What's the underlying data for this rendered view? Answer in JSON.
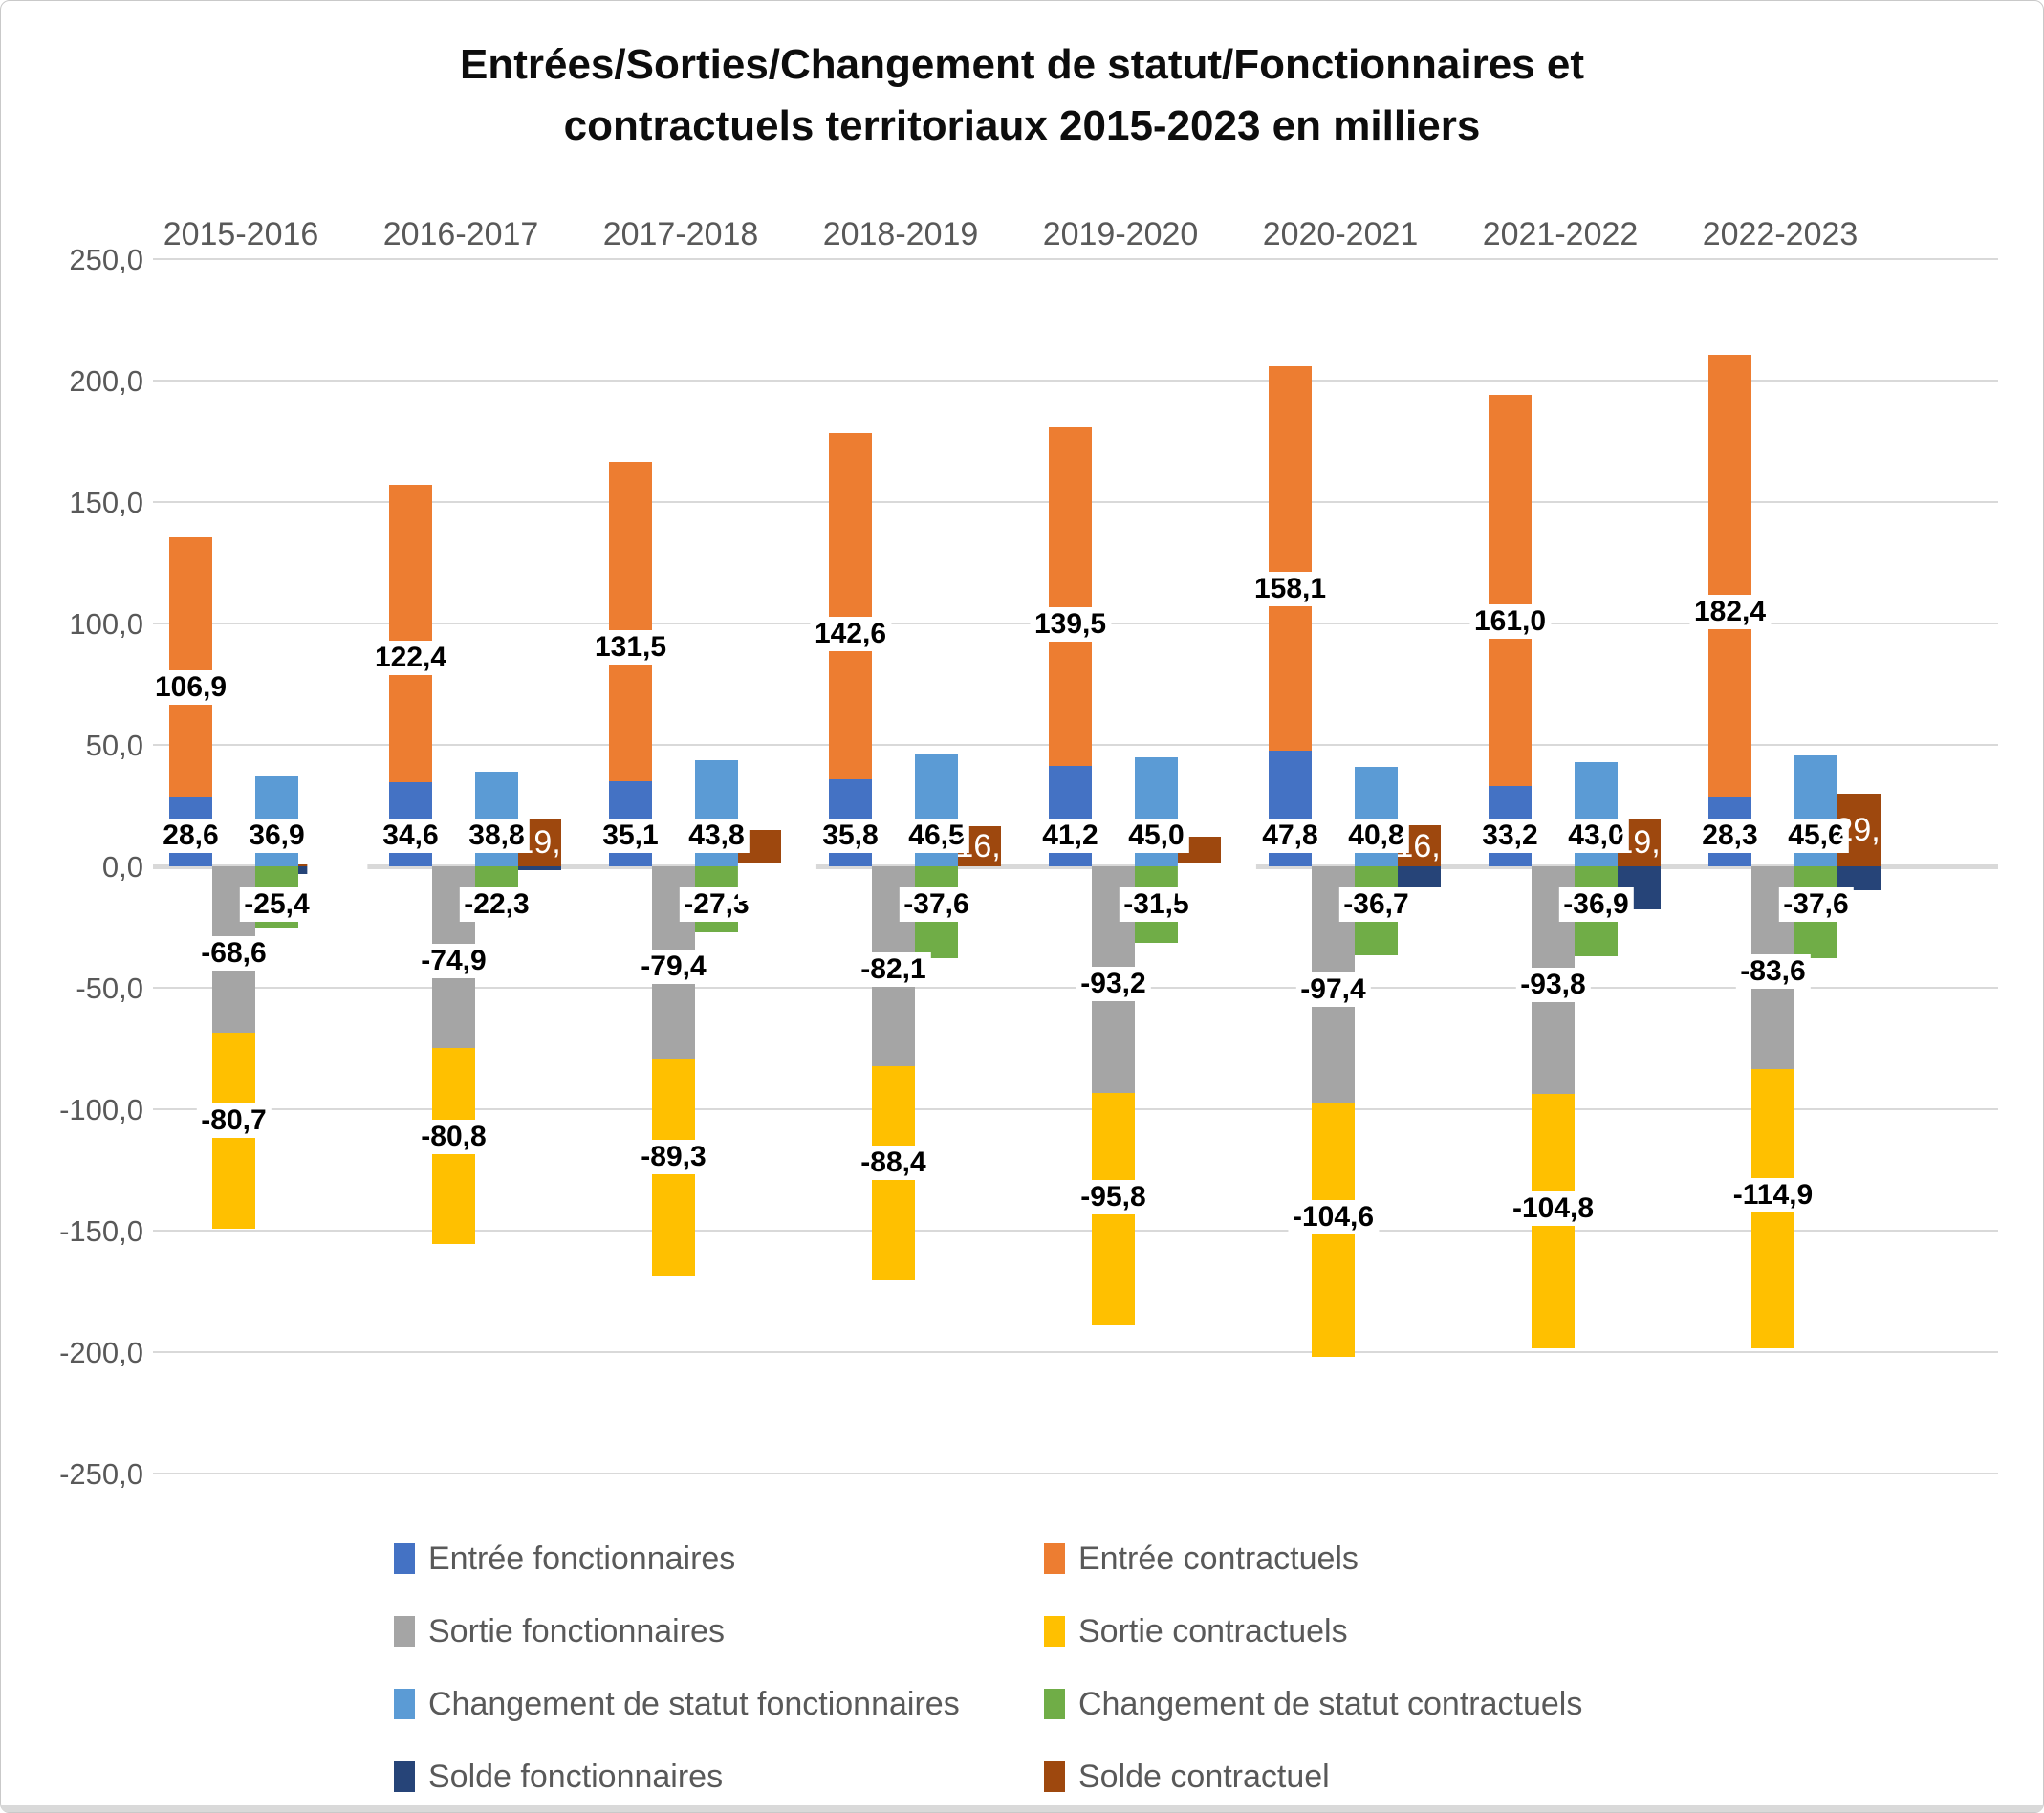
{
  "title": {
    "line1": "Entrées/Sorties/Changement de statut/Fonctionnaires et",
    "line2": "contractuels territoriaux 2015-2023 en milliers"
  },
  "chart_data": {
    "type": "bar",
    "subtype": "stacked-grouped",
    "unit": "milliers",
    "categories": [
      "2015-2016",
      "2016-2017",
      "2017-2018",
      "2018-2019",
      "2019-2020",
      "2020-2021",
      "2021-2022",
      "2022-2023"
    ],
    "series": [
      {
        "name": "Entrée fonctionnaires",
        "color": "#4472C4",
        "stack": "entrees",
        "values": [
          28.6,
          34.6,
          35.1,
          35.8,
          41.2,
          47.8,
          33.2,
          28.3
        ],
        "labels": [
          "28,6",
          "34,6",
          "35,1",
          "35,8",
          "41,2",
          "47,8",
          "33,2",
          "28,3"
        ]
      },
      {
        "name": "Entrée contractuels",
        "color": "#ED7D31",
        "stack": "entrees",
        "values": [
          106.9,
          122.4,
          131.5,
          142.6,
          139.5,
          158.1,
          161.0,
          182.4
        ],
        "labels": [
          "106,9",
          "122,4",
          "131,5",
          "142,6",
          "139,5",
          "158,1",
          "161,0",
          "182,4"
        ]
      },
      {
        "name": "Sortie fonctionnaires",
        "color": "#A5A5A5",
        "stack": "sorties",
        "values": [
          -68.6,
          -74.9,
          -79.4,
          -82.1,
          -93.2,
          -97.4,
          -93.8,
          -83.6
        ],
        "labels": [
          "-68,6",
          "-74,9",
          "-79,4",
          "-82,1",
          "-93,2",
          "-97,4",
          "-93,8",
          "-83,6"
        ]
      },
      {
        "name": "Sortie contractuels",
        "color": "#FFC000",
        "stack": "sorties",
        "values": [
          -80.7,
          -80.8,
          -89.3,
          -88.4,
          -95.8,
          -104.6,
          -104.8,
          -114.9
        ],
        "labels": [
          "-80,7",
          "-80,8",
          "-89,3",
          "-88,4",
          "-95,8",
          "-104,6",
          "-104,8",
          "-114,9"
        ]
      },
      {
        "name": "Changement de statut fonctionnaires",
        "color": "#5B9BD5",
        "stack": "changement",
        "values": [
          36.9,
          38.8,
          43.8,
          46.5,
          45.0,
          40.8,
          43.0,
          45.6
        ],
        "labels": [
          "36,9",
          "38,8",
          "43,8",
          "46,5",
          "45,0",
          "40,8",
          "43,0",
          "45,6"
        ]
      },
      {
        "name": "Changement de statut contractuels",
        "color": "#70AD47",
        "stack": "changement",
        "values": [
          -25.4,
          -22.3,
          -27.3,
          -37.6,
          -31.5,
          -36.7,
          -36.9,
          -37.6
        ],
        "labels": [
          "-25,4",
          "-22,3",
          "-27,3",
          "-37,6",
          "-31,5",
          "-36,7",
          "-36,9",
          "-37,6"
        ]
      },
      {
        "name": "Solde fonctionnaires",
        "color": "#264478",
        "stack": "solde",
        "values": [
          -3.1,
          -1.5,
          -0.5,
          0.2,
          -7.0,
          -8.8,
          -17.6,
          -9.7
        ],
        "labels": [
          "",
          "",
          "",
          "",
          "",
          "",
          "",
          ""
        ]
      },
      {
        "name": "Solde contractuel",
        "color": "#9E480E",
        "stack": "solde",
        "values": [
          0.8,
          19.3,
          15.0,
          16.6,
          12.2,
          16.9,
          19.3,
          29.9
        ],
        "labels": [
          "0,8",
          "19,3",
          "15,0",
          "16,6",
          "12,2",
          "16,9",
          "19,3",
          "29,9"
        ]
      }
    ],
    "ylim": [
      -250,
      250
    ],
    "ytick_step": 50,
    "yticks": [
      "250,0",
      "200,0",
      "150,0",
      "100,0",
      "50,0",
      "0,0",
      "-50,0",
      "-100,0",
      "-150,0",
      "-200,0",
      "-250,0"
    ],
    "grid": true,
    "legend_position": "bottom"
  },
  "legend": {
    "items": [
      {
        "label": "Entrée fonctionnaires",
        "color": "#4472C4"
      },
      {
        "label": "Entrée contractuels",
        "color": "#ED7D31"
      },
      {
        "label": "Sortie fonctionnaires",
        "color": "#A5A5A5"
      },
      {
        "label": "Sortie contractuels",
        "color": "#FFC000"
      },
      {
        "label": "Changement de statut fonctionnaires",
        "color": "#5B9BD5"
      },
      {
        "label": "Changement de statut contractuels",
        "color": "#70AD47"
      },
      {
        "label": "Solde fonctionnaires",
        "color": "#264478"
      },
      {
        "label": "Solde contractuel",
        "color": "#9E480E"
      }
    ]
  }
}
